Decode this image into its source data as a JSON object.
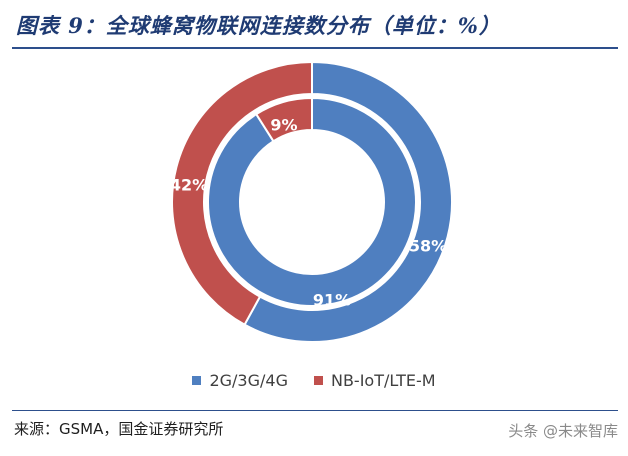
{
  "title": "图表 9：全球蜂窝物联网连接数分布（单位：%）",
  "source": "来源：GSMA，国金证券研究所",
  "watermark": "头条 @未来智库",
  "colors": {
    "blue": "#4f7fc0",
    "red": "#c0504d",
    "label": "#ffffff"
  },
  "chart_data": {
    "type": "pie",
    "variant": "nested-donut",
    "unit": "%",
    "categories": [
      "2G/3G/4G",
      "NB-IoT/LTE-M"
    ],
    "series": [
      {
        "ring": "outer",
        "values": [
          58,
          42
        ],
        "labels": [
          "58%",
          "42%"
        ]
      },
      {
        "ring": "inner",
        "values": [
          91,
          9
        ],
        "labels": [
          "91%",
          "9%"
        ]
      }
    ],
    "legend_placement": "bottom"
  }
}
